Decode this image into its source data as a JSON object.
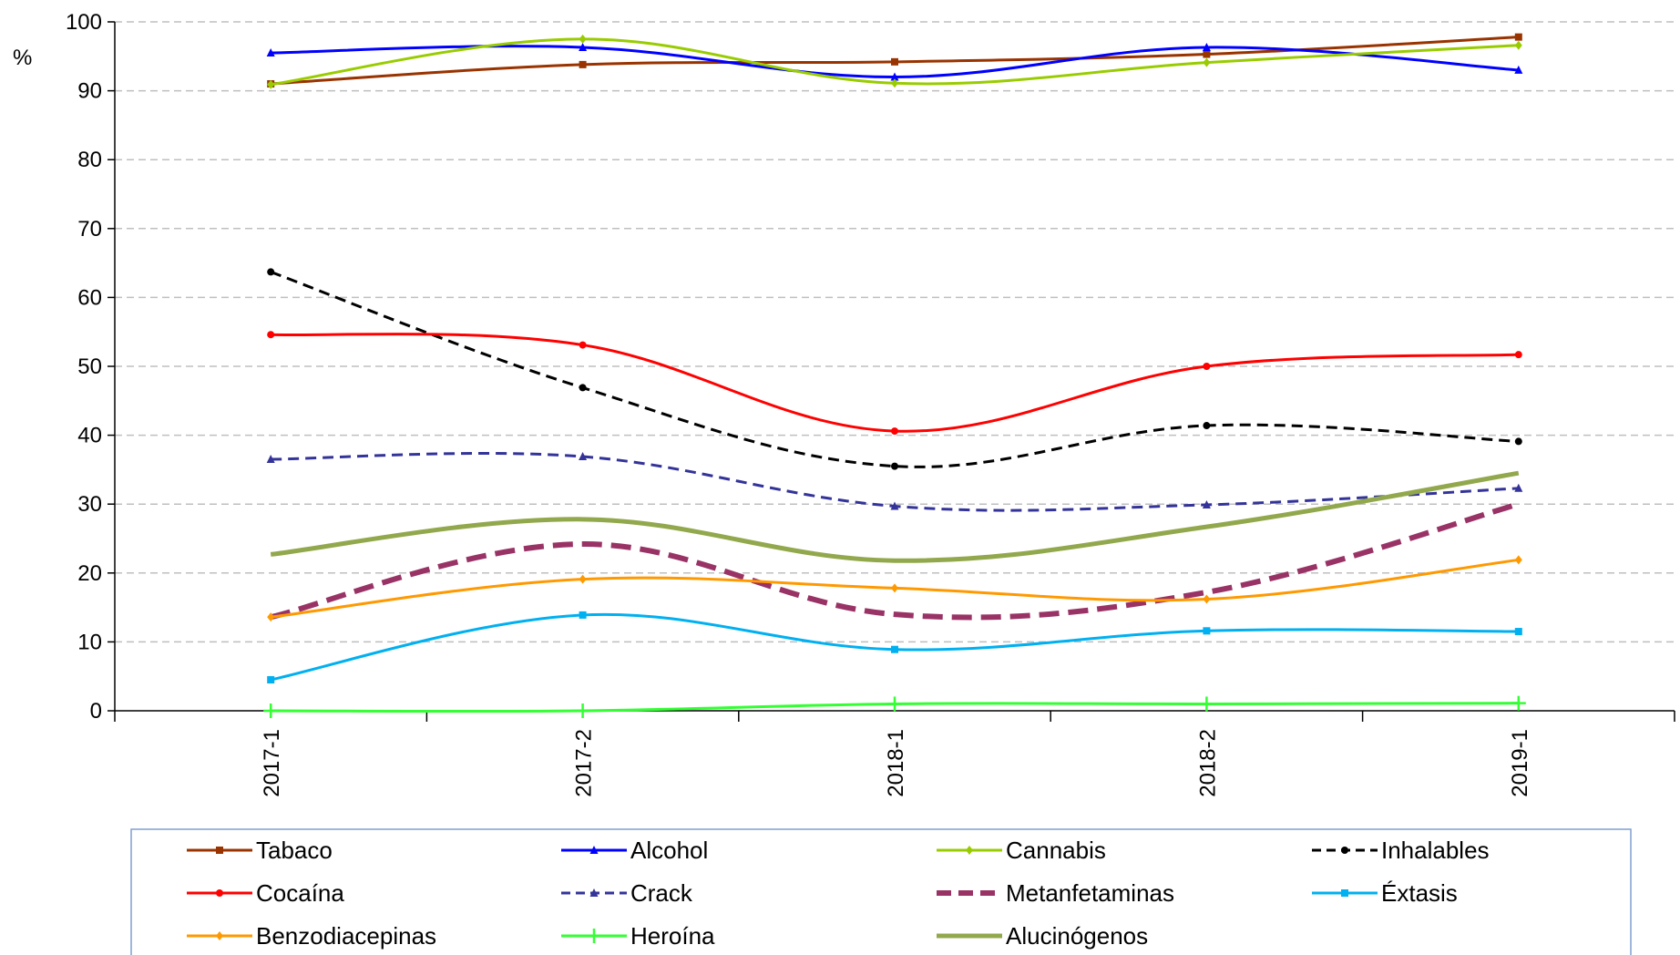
{
  "chart_data": {
    "type": "line",
    "title": "",
    "xlabel": "",
    "ylabel": "%",
    "ylim": [
      0,
      100
    ],
    "yticks": [
      "0",
      "10",
      "20",
      "30",
      "40",
      "50",
      "60",
      "70",
      "80",
      "90",
      "100"
    ],
    "grid": "horizontal dashed",
    "legend_position": "bottom",
    "categories": [
      "2017-1",
      "2017-2",
      "2018-1",
      "2018-2",
      "2019-1"
    ],
    "series": [
      {
        "name": "Tabaco",
        "color": "#993300",
        "style": "solid",
        "marker": "square",
        "values": [
          91.0,
          93.8,
          94.2,
          95.3,
          97.8
        ]
      },
      {
        "name": "Alcohol",
        "color": "#0000ff",
        "style": "solid",
        "marker": "triangle",
        "values": [
          95.5,
          96.3,
          92.0,
          96.3,
          93.0
        ]
      },
      {
        "name": "Cannabis",
        "color": "#99cc00",
        "style": "solid",
        "marker": "diamond",
        "values": [
          90.9,
          97.5,
          91.1,
          94.1,
          96.6
        ]
      },
      {
        "name": "Inhalables",
        "color": "#000000",
        "style": "dash",
        "marker": "circle",
        "values": [
          63.7,
          46.9,
          35.5,
          41.4,
          39.1
        ]
      },
      {
        "name": "Cocaína",
        "color": "#ff0000",
        "style": "solid",
        "marker": "circle",
        "values": [
          54.6,
          53.1,
          40.6,
          50.0,
          51.7
        ]
      },
      {
        "name": "Crack",
        "color": "#333399",
        "style": "dash",
        "marker": "triangle",
        "values": [
          36.5,
          36.9,
          29.7,
          29.9,
          32.3
        ]
      },
      {
        "name": "Metanfetaminas",
        "color": "#993366",
        "style": "thick-dash",
        "marker": "none",
        "values": [
          13.6,
          24.2,
          14.0,
          17.2,
          30.0
        ]
      },
      {
        "name": "Éxtasis",
        "color": "#00b0f0",
        "style": "solid",
        "marker": "square",
        "values": [
          4.5,
          13.9,
          8.9,
          11.6,
          11.5
        ]
      },
      {
        "name": "Benzodiacepinas",
        "color": "#ff9900",
        "style": "solid",
        "marker": "diamond",
        "values": [
          13.6,
          19.1,
          17.8,
          16.2,
          21.9
        ]
      },
      {
        "name": "Heroína",
        "color": "#33ff33",
        "style": "solid",
        "marker": "plus",
        "values": [
          0.0,
          0.0,
          1.0,
          1.0,
          1.1
        ]
      },
      {
        "name": "Alucinógenos",
        "color": "#92a84c",
        "style": "thick",
        "marker": "none",
        "values": [
          22.7,
          27.8,
          21.8,
          26.7,
          34.5
        ]
      }
    ]
  }
}
